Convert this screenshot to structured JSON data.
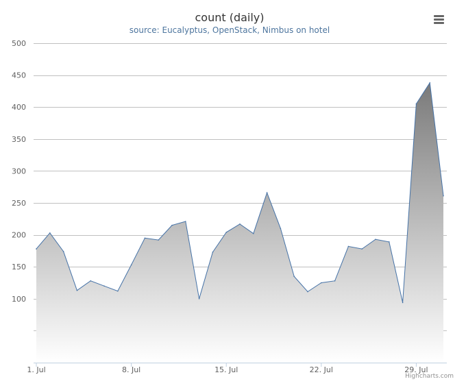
{
  "chart_data": {
    "type": "area",
    "title": "count (daily)",
    "subtitle": "source: Eucalyptus, OpenStack, Nimbus on hotel",
    "x_tick_labels": [
      "1. Jul",
      "8. Jul",
      "15. Jul",
      "22. Jul",
      "29. Jul"
    ],
    "y_tick_labels": [
      "100",
      "150",
      "200",
      "250",
      "300",
      "350",
      "400",
      "450",
      "500"
    ],
    "ylim": [
      0,
      500
    ],
    "x_start": "2013-07-01",
    "x": [
      "1 Jul",
      "2 Jul",
      "3 Jul",
      "4 Jul",
      "5 Jul",
      "6 Jul",
      "7 Jul",
      "8 Jul",
      "9 Jul",
      "10 Jul",
      "11 Jul",
      "12 Jul",
      "13 Jul",
      "14 Jul",
      "15 Jul",
      "16 Jul",
      "17 Jul",
      "18 Jul",
      "19 Jul",
      "20 Jul",
      "21 Jul",
      "22 Jul",
      "23 Jul",
      "24 Jul",
      "25 Jul",
      "26 Jul",
      "27 Jul",
      "28 Jul",
      "29 Jul",
      "30 Jul",
      "31 Jul"
    ],
    "series": [
      {
        "values": [
          178,
          203,
          174,
          113,
          128,
          120,
          112,
          153,
          195,
          192,
          215,
          221,
          100,
          173,
          204,
          217,
          202,
          266,
          210,
          135,
          111,
          125,
          128,
          182,
          178,
          193,
          189,
          94,
          405,
          438,
          261
        ]
      }
    ],
    "grid": true,
    "legend": "none",
    "colors": {
      "line": "#4572a7",
      "fill_top": "#7a7a7a",
      "fill_bottom": "#ffffff",
      "grid": "#c0c0c0",
      "axis": "#c0d0e0"
    }
  },
  "credits": "Highcharts.com",
  "menu_icon": "hamburger-menu-icon"
}
